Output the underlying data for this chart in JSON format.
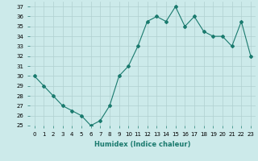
{
  "x": [
    0,
    1,
    2,
    3,
    4,
    5,
    6,
    7,
    8,
    9,
    10,
    11,
    12,
    13,
    14,
    15,
    16,
    17,
    18,
    19,
    20,
    21,
    22,
    23
  ],
  "y": [
    30,
    29,
    28,
    27,
    26.5,
    26,
    25,
    25.5,
    27,
    30,
    31,
    33,
    35.5,
    36,
    35.5,
    37,
    35,
    36,
    34.5,
    34,
    34,
    33,
    35.5,
    32
  ],
  "line_color": "#1a7a6e",
  "marker": "D",
  "marker_size": 2,
  "bg_color": "#cceaea",
  "grid_color": "#b0d0d0",
  "xlabel": "Humidex (Indice chaleur)",
  "ylim": [
    25,
    37.5
  ],
  "xlim": [
    -0.5,
    23.5
  ],
  "yticks": [
    25,
    26,
    27,
    28,
    29,
    30,
    31,
    32,
    33,
    34,
    35,
    36,
    37
  ],
  "xtick_labels": [
    "0",
    "1",
    "2",
    "3",
    "4",
    "5",
    "6",
    "7",
    "8",
    "9",
    "10",
    "11",
    "12",
    "13",
    "14",
    "15",
    "16",
    "17",
    "18",
    "19",
    "20",
    "21",
    "22",
    "23"
  ],
  "xlabel_fontsize": 6.0,
  "tick_fontsize": 5.0
}
